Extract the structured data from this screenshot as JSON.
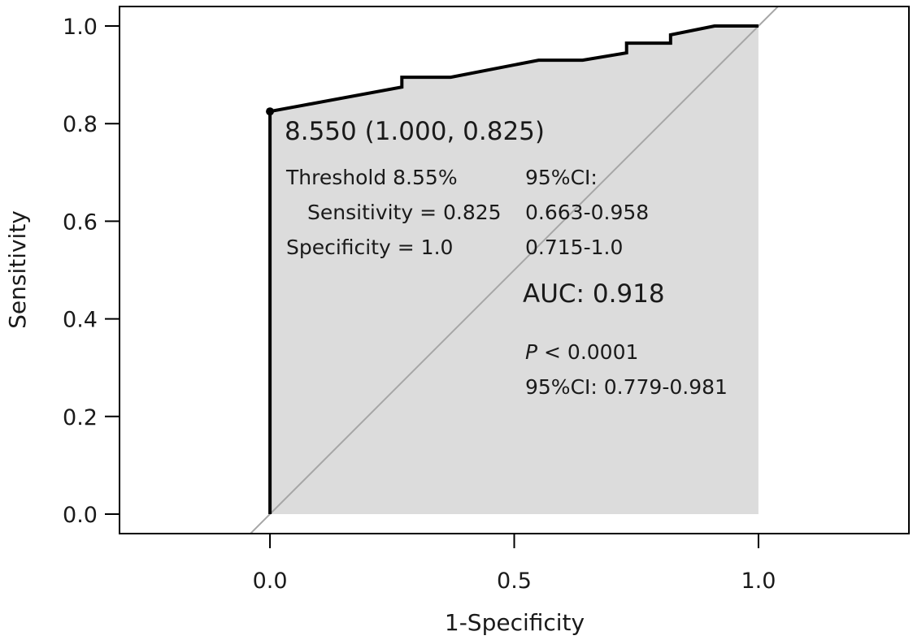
{
  "chart_data": {
    "type": "line",
    "title": "",
    "xlabel": "1-Specificity",
    "ylabel": "Sensitivity",
    "xlim": [
      -0.308,
      1.308
    ],
    "ylim": [
      -0.04,
      1.04
    ],
    "xticks": [
      {
        "v": 0,
        "label": "0.0"
      },
      {
        "v": 0.5,
        "label": "0.5"
      },
      {
        "v": 1,
        "label": "1.0"
      }
    ],
    "yticks": [
      {
        "v": 0,
        "label": "0.0"
      },
      {
        "v": 0.2,
        "label": "0.2"
      },
      {
        "v": 0.4,
        "label": "0.4"
      },
      {
        "v": 0.6,
        "label": "0.6"
      },
      {
        "v": 0.8,
        "label": "0.8"
      },
      {
        "v": 1,
        "label": "1.0"
      }
    ],
    "grid": false,
    "legend": "none",
    "series": [
      {
        "x": [
          0,
          0,
          0.27,
          0.27,
          0.37,
          0.55,
          0.64,
          0.73,
          0.73,
          0.82,
          0.82,
          0.91,
          1.0
        ],
        "y": [
          0,
          0.825,
          0.875,
          0.895,
          0.895,
          0.93,
          0.93,
          0.945,
          0.965,
          0.965,
          0.982,
          1.0,
          1.0
        ],
        "fill": true,
        "color": "#000000",
        "fill_color": "#dcdcdc"
      }
    ],
    "reference_line": {
      "x": [
        -0.05,
        1.05
      ],
      "y": [
        -0.05,
        1.05
      ],
      "color": "#a6a6a6"
    },
    "cutoff_point": {
      "x": 0,
      "y": 0.825,
      "label": "8.550 (1.000, 0.825)"
    },
    "annotations": {
      "threshold": "Threshold 8.55%",
      "sensitivity": "Sensitivity = 0.825",
      "specificity": "Specificity = 1.0",
      "ci_header": "95%CI:",
      "ci_sensitivity": "0.663-0.958",
      "ci_specificity": "0.715-1.0",
      "auc": "AUC: 0.918",
      "p_symbol": "P",
      "p_rest": " < 0.0001",
      "auc_ci": "95%CI: 0.779-0.981"
    }
  }
}
